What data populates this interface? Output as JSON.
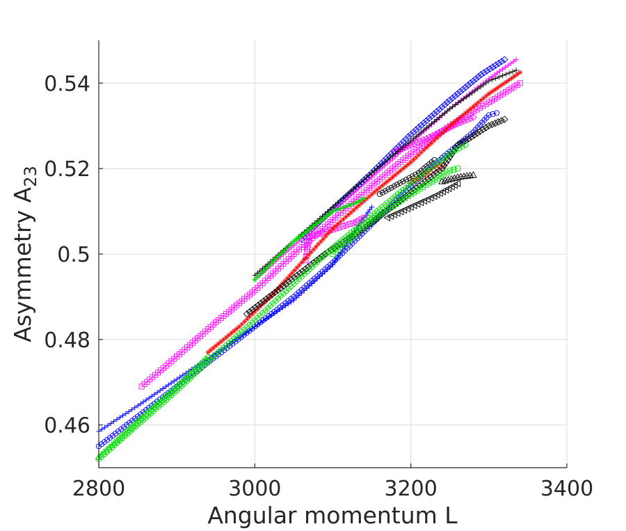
{
  "chart_data": {
    "type": "scatter",
    "xlabel": "Angular momentum L",
    "ylabel_base": "Asymmetry A",
    "ylabel_sub": "23",
    "xlim": [
      2800,
      3400
    ],
    "ylim": [
      0.45,
      0.55
    ],
    "xticks": [
      "2800",
      "3000",
      "3200",
      "3400"
    ],
    "yticks": [
      "0.46",
      "0.48",
      "0.5",
      "0.52",
      "0.54"
    ],
    "xtick_values": [
      2800,
      3000,
      3200,
      3400
    ],
    "ytick_values": [
      0.46,
      0.48,
      0.5,
      0.52,
      0.54
    ],
    "grid": true,
    "series": [
      {
        "color": "#0000ff",
        "marker": "cross",
        "points": [
          [
            2800,
            0.4585
          ],
          [
            2850,
            0.4645
          ],
          [
            2900,
            0.4707
          ],
          [
            2950,
            0.4768
          ],
          [
            3000,
            0.483
          ],
          [
            3050,
            0.4892
          ],
          [
            3100,
            0.4975
          ],
          [
            3130,
            0.506
          ],
          [
            3150,
            0.511
          ]
        ]
      },
      {
        "color": "#0000ff",
        "marker": "circle",
        "points": [
          [
            2800,
            0.455
          ],
          [
            2850,
            0.462
          ],
          [
            2900,
            0.469
          ],
          [
            2950,
            0.476
          ],
          [
            3000,
            0.483
          ],
          [
            3050,
            0.49
          ],
          [
            3100,
            0.498
          ],
          [
            3150,
            0.507
          ],
          [
            3200,
            0.516
          ],
          [
            3240,
            0.5225
          ],
          [
            3280,
            0.5285
          ],
          [
            3300,
            0.5325
          ],
          [
            3310,
            0.533
          ]
        ]
      },
      {
        "color": "#0000ff",
        "marker": "diamond",
        "points": [
          [
            3060,
            0.5035
          ],
          [
            3100,
            0.5105
          ],
          [
            3150,
            0.519
          ],
          [
            3200,
            0.528
          ],
          [
            3250,
            0.536
          ],
          [
            3290,
            0.542
          ],
          [
            3320,
            0.5455
          ]
        ]
      },
      {
        "color": "#ff00ff",
        "marker": "square",
        "points": [
          [
            2855,
            0.469
          ],
          [
            2900,
            0.476
          ],
          [
            2950,
            0.484
          ],
          [
            3000,
            0.4915
          ],
          [
            3050,
            0.5
          ],
          [
            3100,
            0.508
          ],
          [
            3150,
            0.516
          ],
          [
            3200,
            0.5235
          ],
          [
            3250,
            0.53
          ],
          [
            3300,
            0.5355
          ],
          [
            3340,
            0.54
          ]
        ]
      },
      {
        "color": "#ff00ff",
        "marker": "cross",
        "points": [
          [
            3000,
            0.494
          ],
          [
            3050,
            0.502
          ],
          [
            3100,
            0.51
          ],
          [
            3150,
            0.518
          ],
          [
            3200,
            0.526
          ],
          [
            3250,
            0.534
          ],
          [
            3300,
            0.541
          ],
          [
            3335,
            0.5455
          ]
        ]
      },
      {
        "color": "#ff00ff",
        "marker": "square",
        "points": [
          [
            3065,
            0.4985
          ],
          [
            3067,
            0.5005
          ],
          [
            3068,
            0.502
          ],
          [
            3070,
            0.504
          ],
          [
            3130,
            0.5075
          ],
          [
            3140,
            0.5085
          ]
        ]
      },
      {
        "color": "#ff00ff",
        "marker": "diamond",
        "points": [
          [
            3180,
            0.524
          ],
          [
            3220,
            0.527
          ],
          [
            3260,
            0.5305
          ],
          [
            3280,
            0.532
          ]
        ]
      },
      {
        "color": "#ff0000",
        "marker": "star",
        "points": [
          [
            2940,
            0.477
          ],
          [
            2980,
            0.483
          ],
          [
            3020,
            0.49
          ],
          [
            3060,
            0.498
          ],
          [
            3100,
            0.506
          ],
          [
            3150,
            0.514
          ],
          [
            3200,
            0.5215
          ],
          [
            3250,
            0.53
          ],
          [
            3300,
            0.5375
          ],
          [
            3340,
            0.5425
          ]
        ]
      },
      {
        "color": "#ff0000",
        "marker": "triangle-left",
        "points": [
          [
            3200,
            0.517
          ],
          [
            3220,
            0.519
          ],
          [
            3240,
            0.521
          ]
        ]
      },
      {
        "color": "#000000",
        "marker": "cross",
        "points": [
          [
            3000,
            0.495
          ],
          [
            3050,
            0.503
          ],
          [
            3100,
            0.511
          ],
          [
            3150,
            0.519
          ],
          [
            3200,
            0.5265
          ],
          [
            3250,
            0.534
          ],
          [
            3300,
            0.5405
          ],
          [
            3335,
            0.543
          ]
        ]
      },
      {
        "color": "#000000",
        "marker": "diamond",
        "points": [
          [
            2990,
            0.486
          ],
          [
            3040,
            0.493
          ],
          [
            3090,
            0.5
          ],
          [
            3140,
            0.506
          ],
          [
            3190,
            0.513
          ],
          [
            3240,
            0.52
          ],
          [
            3260,
            0.5255
          ],
          [
            3270,
            0.5265
          ],
          [
            3300,
            0.53
          ],
          [
            3320,
            0.5315
          ]
        ]
      },
      {
        "color": "#000000",
        "marker": "circle",
        "points": [
          [
            3160,
            0.514
          ],
          [
            3190,
            0.517
          ],
          [
            3210,
            0.519
          ],
          [
            3230,
            0.522
          ]
        ]
      },
      {
        "color": "#000000",
        "marker": "triangle-left",
        "points": [
          [
            3170,
            0.5085
          ],
          [
            3200,
            0.511
          ],
          [
            3230,
            0.5135
          ],
          [
            3260,
            0.5165
          ]
        ]
      },
      {
        "color": "#000000",
        "marker": "triangle-up",
        "points": [
          [
            3240,
            0.517
          ],
          [
            3260,
            0.518
          ],
          [
            3280,
            0.5185
          ]
        ]
      },
      {
        "color": "#00dd00",
        "marker": "circle",
        "points": [
          [
            2800,
            0.452
          ],
          [
            2850,
            0.46
          ],
          [
            2900,
            0.468
          ],
          [
            2950,
            0.4765
          ],
          [
            3000,
            0.4845
          ],
          [
            3050,
            0.493
          ],
          [
            3100,
            0.5015
          ],
          [
            3150,
            0.509
          ],
          [
            3200,
            0.5165
          ],
          [
            3250,
            0.5235
          ],
          [
            3270,
            0.5255
          ]
        ]
      },
      {
        "color": "#00dd00",
        "marker": "triangle-up",
        "points": [
          [
            2800,
            0.4525
          ],
          [
            2850,
            0.461
          ],
          [
            2900,
            0.469
          ],
          [
            2940,
            0.476
          ]
        ]
      },
      {
        "color": "#00dd00",
        "marker": "star",
        "points": [
          [
            3000,
            0.494
          ],
          [
            3050,
            0.503
          ],
          [
            3100,
            0.51
          ],
          [
            3130,
            0.512
          ],
          [
            3140,
            0.513
          ]
        ]
      },
      {
        "color": "#00dd00",
        "marker": "square",
        "points": [
          [
            3100,
            0.5
          ],
          [
            3150,
            0.508
          ],
          [
            3200,
            0.514
          ],
          [
            3250,
            0.5195
          ],
          [
            3260,
            0.52
          ]
        ]
      }
    ]
  }
}
